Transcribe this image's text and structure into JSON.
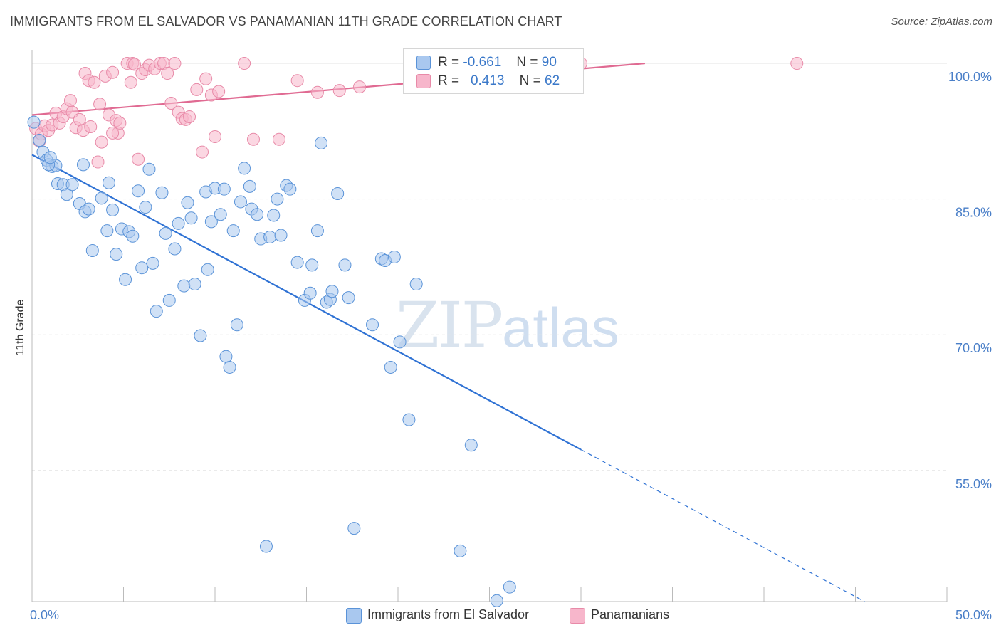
{
  "header": {
    "title": "IMMIGRANTS FROM EL SALVADOR VS PANAMANIAN 11TH GRADE CORRELATION CHART",
    "source": "Source: ZipAtlas.com"
  },
  "watermark": {
    "zip": "ZIP",
    "atlas": "atlas"
  },
  "legend": {
    "rows": [
      {
        "r_label": "R =",
        "r_value": "-0.661",
        "n_label": "N =",
        "n_value": "90",
        "color": "#a9c8ef"
      },
      {
        "r_label": "R =",
        "r_value": "0.413",
        "n_label": "N =",
        "n_value": "62",
        "color": "#f7b6cb"
      }
    ]
  },
  "bottom_legend": {
    "items": [
      {
        "label": "Immigrants from El Salvador",
        "color": "#a9c8ef"
      },
      {
        "label": "Panamanians",
        "color": "#f7b6cb"
      }
    ]
  },
  "chart_data": {
    "type": "scatter",
    "title": "IMMIGRANTS FROM EL SALVADOR VS PANAMANIAN 11TH GRADE CORRELATION CHART",
    "xlabel": "",
    "ylabel": "11th Grade",
    "xlim": [
      0,
      50
    ],
    "ylim": [
      40.5,
      101.5
    ],
    "x_tick_labels": [
      "0.0%",
      "50.0%"
    ],
    "y_ticks": [
      100,
      85,
      70,
      55
    ],
    "y_tick_labels": [
      "100.0%",
      "85.0%",
      "70.0%",
      "55.0%"
    ],
    "grid": true,
    "legend_placement": "top-center",
    "colors": {
      "series1_fill": "#a9c8ef",
      "series1_stroke": "#5a93d8",
      "series1_line": "#2f72d4",
      "series2_fill": "#f7b6cb",
      "series2_stroke": "#e88aa8",
      "series2_line": "#e06a92"
    },
    "series": [
      {
        "name": "Immigrants from El Salvador",
        "trend": {
          "x0": 0,
          "y0": 89.9,
          "x1": 30,
          "y1": 57.3,
          "dashed_to_x": 45.5,
          "dashed_to_y": 40.5
        },
        "points": [
          [
            0.1,
            93.5
          ],
          [
            0.4,
            91.5
          ],
          [
            0.6,
            90.2
          ],
          [
            0.8,
            89.3
          ],
          [
            1.1,
            88.6
          ],
          [
            1.3,
            88.7
          ],
          [
            1.4,
            86.7
          ],
          [
            1.7,
            86.6
          ],
          [
            1.9,
            85.5
          ],
          [
            2.2,
            86.6
          ],
          [
            2.6,
            84.5
          ],
          [
            2.8,
            88.8
          ],
          [
            2.9,
            83.6
          ],
          [
            3.1,
            83.9
          ],
          [
            3.3,
            79.3
          ],
          [
            3.8,
            85.1
          ],
          [
            4.1,
            81.5
          ],
          [
            4.2,
            86.8
          ],
          [
            4.4,
            83.8
          ],
          [
            4.6,
            78.9
          ],
          [
            4.9,
            81.7
          ],
          [
            5.1,
            76.1
          ],
          [
            5.3,
            81.4
          ],
          [
            5.5,
            80.9
          ],
          [
            5.8,
            85.9
          ],
          [
            6.0,
            77.4
          ],
          [
            6.2,
            84.1
          ],
          [
            6.4,
            88.3
          ],
          [
            6.6,
            77.9
          ],
          [
            6.8,
            72.6
          ],
          [
            7.1,
            85.7
          ],
          [
            7.3,
            81.2
          ],
          [
            7.5,
            73.8
          ],
          [
            7.8,
            79.5
          ],
          [
            8.0,
            82.3
          ],
          [
            8.3,
            75.4
          ],
          [
            8.5,
            84.6
          ],
          [
            8.7,
            82.9
          ],
          [
            8.9,
            75.6
          ],
          [
            9.2,
            69.9
          ],
          [
            9.5,
            85.8
          ],
          [
            9.6,
            77.2
          ],
          [
            9.8,
            82.5
          ],
          [
            10.0,
            86.2
          ],
          [
            10.3,
            83.3
          ],
          [
            10.5,
            86.1
          ],
          [
            10.6,
            67.6
          ],
          [
            10.8,
            66.4
          ],
          [
            11.0,
            81.5
          ],
          [
            11.2,
            71.1
          ],
          [
            11.4,
            84.7
          ],
          [
            11.6,
            88.4
          ],
          [
            11.9,
            86.4
          ],
          [
            12.0,
            83.9
          ],
          [
            12.3,
            83.3
          ],
          [
            12.5,
            80.6
          ],
          [
            12.8,
            46.6
          ],
          [
            13.0,
            80.8
          ],
          [
            13.2,
            83.2
          ],
          [
            13.4,
            85.0
          ],
          [
            13.6,
            81.0
          ],
          [
            13.9,
            86.5
          ],
          [
            14.1,
            86.1
          ],
          [
            14.5,
            78.0
          ],
          [
            14.9,
            73.8
          ],
          [
            15.2,
            74.6
          ],
          [
            15.3,
            77.7
          ],
          [
            15.6,
            81.5
          ],
          [
            15.8,
            91.2
          ],
          [
            16.1,
            73.6
          ],
          [
            16.3,
            73.9
          ],
          [
            16.4,
            74.8
          ],
          [
            16.7,
            85.6
          ],
          [
            17.1,
            77.7
          ],
          [
            17.3,
            74.1
          ],
          [
            17.6,
            48.6
          ],
          [
            18.6,
            71.1
          ],
          [
            19.1,
            78.4
          ],
          [
            19.3,
            78.2
          ],
          [
            19.6,
            66.4
          ],
          [
            19.8,
            78.6
          ],
          [
            20.1,
            69.2
          ],
          [
            20.6,
            60.6
          ],
          [
            21.0,
            75.6
          ],
          [
            23.4,
            46.1
          ],
          [
            24.0,
            57.8
          ],
          [
            25.4,
            40.6
          ],
          [
            26.1,
            42.1
          ],
          [
            0.9,
            88.8
          ],
          [
            1.0,
            89.6
          ]
        ]
      },
      {
        "name": "Panamanians",
        "trend": {
          "x0": 0,
          "y0": 94.3,
          "x1": 33.5,
          "y1": 100.0
        },
        "points": [
          [
            0.2,
            92.8
          ],
          [
            0.4,
            91.4
          ],
          [
            0.5,
            92.2
          ],
          [
            0.7,
            93.1
          ],
          [
            0.9,
            92.6
          ],
          [
            1.1,
            93.2
          ],
          [
            1.3,
            94.5
          ],
          [
            1.5,
            93.4
          ],
          [
            1.7,
            94.1
          ],
          [
            1.9,
            95.0
          ],
          [
            2.1,
            95.9
          ],
          [
            2.2,
            94.6
          ],
          [
            2.4,
            92.9
          ],
          [
            2.6,
            93.8
          ],
          [
            2.8,
            92.6
          ],
          [
            2.9,
            98.9
          ],
          [
            3.1,
            98.1
          ],
          [
            3.2,
            93.0
          ],
          [
            3.4,
            97.9
          ],
          [
            3.6,
            89.1
          ],
          [
            3.7,
            95.5
          ],
          [
            3.8,
            91.3
          ],
          [
            4.0,
            98.6
          ],
          [
            4.2,
            94.3
          ],
          [
            4.4,
            99.0
          ],
          [
            4.6,
            93.7
          ],
          [
            4.7,
            92.3
          ],
          [
            4.8,
            93.4
          ],
          [
            5.2,
            100.0
          ],
          [
            5.4,
            97.9
          ],
          [
            5.5,
            100.0
          ],
          [
            5.6,
            99.9
          ],
          [
            5.8,
            89.4
          ],
          [
            6.0,
            98.9
          ],
          [
            6.2,
            99.3
          ],
          [
            6.4,
            99.8
          ],
          [
            6.7,
            99.4
          ],
          [
            7.0,
            100.0
          ],
          [
            7.2,
            100.0
          ],
          [
            7.4,
            98.9
          ],
          [
            7.6,
            95.6
          ],
          [
            7.8,
            100.0
          ],
          [
            8.0,
            94.6
          ],
          [
            8.2,
            93.9
          ],
          [
            8.4,
            93.8
          ],
          [
            8.6,
            94.1
          ],
          [
            9.0,
            97.1
          ],
          [
            9.3,
            90.2
          ],
          [
            9.5,
            98.3
          ],
          [
            9.8,
            96.5
          ],
          [
            10.0,
            91.9
          ],
          [
            10.2,
            96.9
          ],
          [
            11.6,
            100.0
          ],
          [
            12.1,
            91.6
          ],
          [
            13.5,
            91.6
          ],
          [
            14.5,
            98.1
          ],
          [
            15.6,
            96.8
          ],
          [
            16.8,
            97.0
          ],
          [
            17.9,
            97.4
          ],
          [
            30.0,
            100.0
          ],
          [
            41.8,
            100.0
          ],
          [
            4.4,
            92.3
          ]
        ]
      }
    ]
  }
}
